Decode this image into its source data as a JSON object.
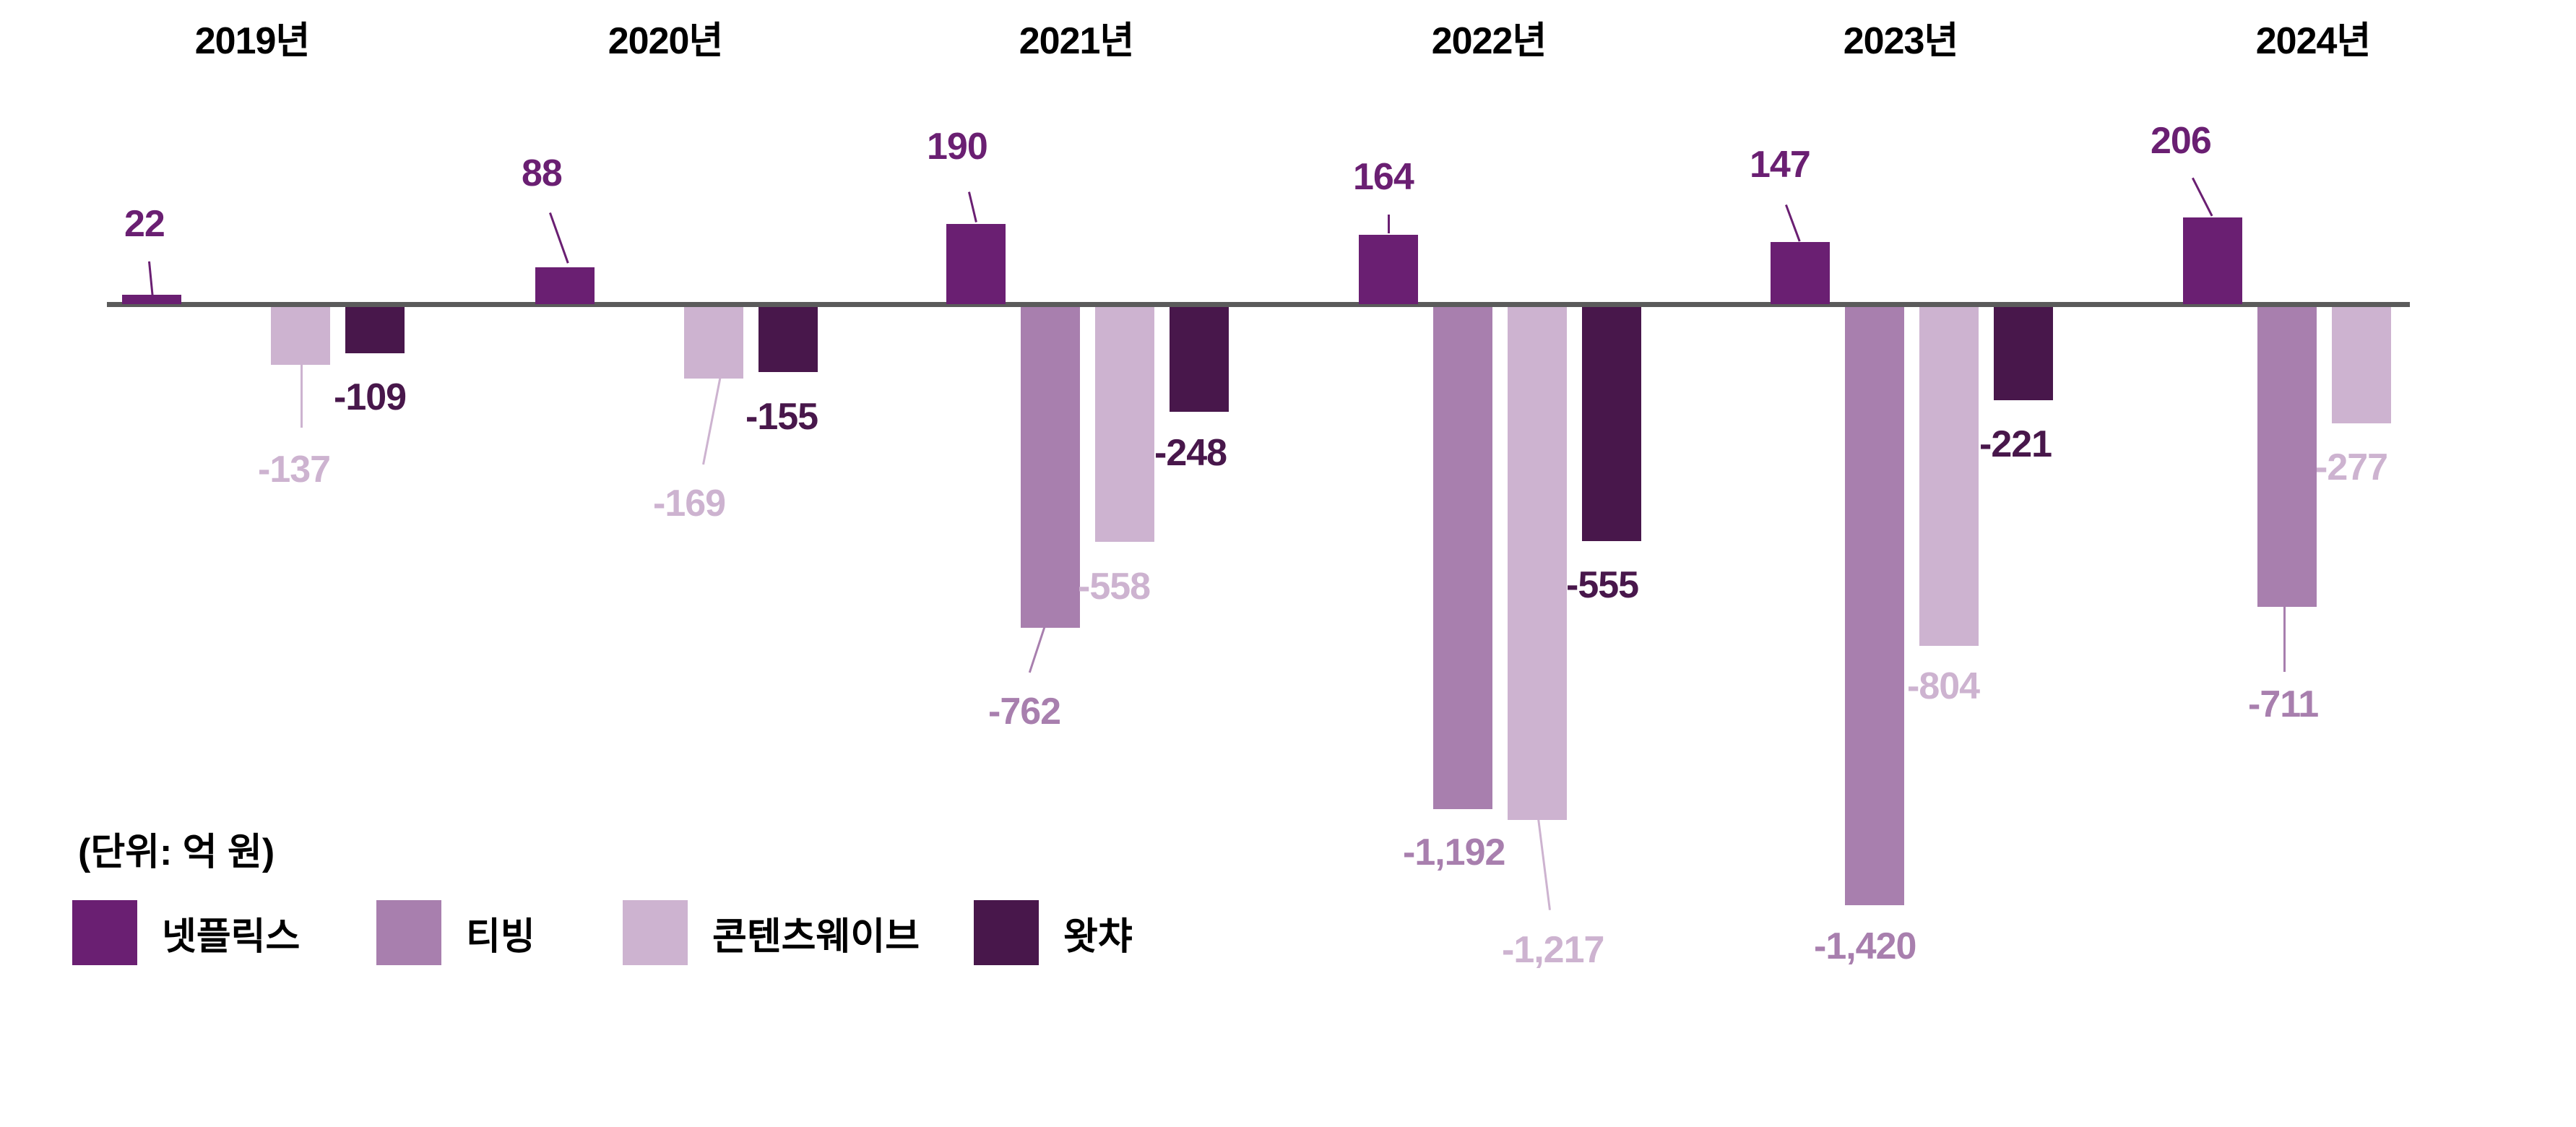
{
  "chart_data": {
    "type": "bar",
    "title": "",
    "unit_label": "(단위: 억 원)",
    "categories": [
      "2019년",
      "2020년",
      "2021년",
      "2022년",
      "2023년",
      "2024년"
    ],
    "series": [
      {
        "name": "넷플릭스",
        "color": "#6a1f72",
        "values": [
          22,
          88,
          190,
          164,
          147,
          206
        ]
      },
      {
        "name": "티빙",
        "color": "#a87fae",
        "values": [
          null,
          null,
          -762,
          -1192,
          -1420,
          -711
        ]
      },
      {
        "name": "콘텐츠웨이브",
        "color": "#cdb3d0",
        "values": [
          -137,
          -169,
          -558,
          -1217,
          -804,
          -277
        ]
      },
      {
        "name": "왓챠",
        "color": "#48174b",
        "values": [
          -109,
          -155,
          -248,
          -555,
          -221,
          null
        ]
      }
    ],
    "value_labels": {
      "넷플릭스": [
        "22",
        "88",
        "190",
        "164",
        "147",
        "206"
      ],
      "티빙": [
        "",
        "",
        "-762",
        "-1,192",
        "-1,420",
        "-711"
      ],
      "콘텐츠웨이브": [
        "-137",
        "-169",
        "-558",
        "-1,217",
        "-804",
        "-277"
      ],
      "왓챠": [
        "-109",
        "-155",
        "-248",
        "-555",
        "-221",
        ""
      ]
    },
    "xlabel": "",
    "ylabel": "",
    "ylim": [
      -1420,
      206
    ],
    "grid": false,
    "legend_position": "bottom-left",
    "baseline_color": "#5b5b5b"
  },
  "legend": {
    "unit": "(단위: 억 원)",
    "items": [
      {
        "label": "넷플릭스",
        "color": "#6a1f72"
      },
      {
        "label": "티빙",
        "color": "#a87fae"
      },
      {
        "label": "콘텐츠웨이브",
        "color": "#cdb3d0"
      },
      {
        "label": "왓챠",
        "color": "#48174b"
      }
    ]
  }
}
